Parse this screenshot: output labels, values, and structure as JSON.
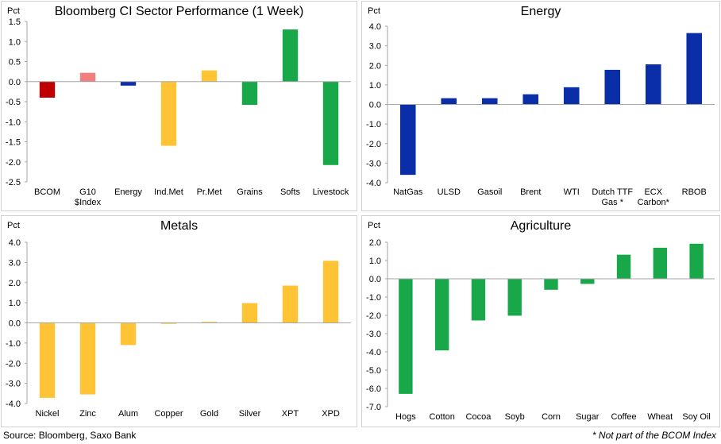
{
  "colors": {
    "red": "#c00000",
    "pink": "#f08080",
    "blue": "#0a2ea8",
    "yellow": "#ffc336",
    "green": "#18a84a",
    "axis": "#a6a6a6"
  },
  "unit_label": "Pct",
  "footer": {
    "source": "Source: Bloomberg, Saxo Bank",
    "note": "* Not part of the BCOM Index"
  },
  "chart_data": [
    {
      "id": "sector",
      "type": "bar",
      "title": "Bloomberg CI Sector Performance (1 Week)",
      "ylabel": "Pct",
      "ylim": [
        -2.5,
        1.5
      ],
      "yticks": [
        -2.5,
        -2.0,
        -1.5,
        -1.0,
        -0.5,
        0.0,
        0.5,
        1.0,
        1.5
      ],
      "tick_decimals": 1,
      "categories": [
        [
          "BCOM"
        ],
        [
          "G10",
          "$Index"
        ],
        [
          "Energy"
        ],
        [
          "Ind.Met"
        ],
        [
          "Pr.Met"
        ],
        [
          "Grains"
        ],
        [
          "Softs"
        ],
        [
          "Livestock"
        ]
      ],
      "values": [
        -0.4,
        0.22,
        -0.1,
        -1.6,
        0.28,
        -0.58,
        1.3,
        -2.08
      ],
      "bar_colors": [
        "red",
        "pink",
        "blue",
        "yellow",
        "yellow",
        "green",
        "green",
        "green"
      ]
    },
    {
      "id": "energy",
      "type": "bar",
      "title": "Energy",
      "ylabel": "Pct",
      "ylim": [
        -4.0,
        4.0
      ],
      "yticks": [
        -4.0,
        -3.0,
        -2.0,
        -1.0,
        0.0,
        1.0,
        2.0,
        3.0,
        4.0
      ],
      "tick_decimals": 1,
      "categories": [
        [
          "NatGas"
        ],
        [
          "ULSD"
        ],
        [
          "Gasoil"
        ],
        [
          "Brent"
        ],
        [
          "WTI"
        ],
        [
          "Dutch TTF",
          "Gas *"
        ],
        [
          "ECX",
          "Carbon*"
        ],
        [
          "RBOB"
        ]
      ],
      "values": [
        -3.6,
        0.32,
        0.32,
        0.52,
        0.88,
        1.77,
        2.05,
        3.65
      ],
      "bar_colors": [
        "blue",
        "blue",
        "blue",
        "blue",
        "blue",
        "blue",
        "blue",
        "blue"
      ]
    },
    {
      "id": "metals",
      "type": "bar",
      "title": "Metals",
      "ylabel": "Pct",
      "ylim": [
        -4.0,
        4.0
      ],
      "yticks": [
        -4.0,
        -3.0,
        -2.0,
        -1.0,
        0.0,
        1.0,
        2.0,
        3.0,
        4.0
      ],
      "tick_decimals": 1,
      "categories": [
        [
          "Nickel"
        ],
        [
          "Zinc"
        ],
        [
          "Alum"
        ],
        [
          "Copper"
        ],
        [
          "Gold"
        ],
        [
          "Silver"
        ],
        [
          "XPT"
        ],
        [
          "XPD"
        ]
      ],
      "values": [
        -3.72,
        -3.55,
        -1.1,
        -0.05,
        0.05,
        0.98,
        1.85,
        3.08
      ],
      "bar_colors": [
        "yellow",
        "yellow",
        "yellow",
        "yellow",
        "yellow",
        "yellow",
        "yellow",
        "yellow"
      ]
    },
    {
      "id": "agriculture",
      "type": "bar",
      "title": "Agriculture",
      "ylabel": "Pct",
      "ylim": [
        -7.0,
        2.0
      ],
      "yticks": [
        -7.0,
        -6.0,
        -5.0,
        -4.0,
        -3.0,
        -2.0,
        -1.0,
        0.0,
        1.0,
        2.0
      ],
      "tick_decimals": 1,
      "categories": [
        [
          "Hogs"
        ],
        [
          "Cotton"
        ],
        [
          "Cocoa"
        ],
        [
          "Soyb"
        ],
        [
          "Corn"
        ],
        [
          "Sugar"
        ],
        [
          "Coffee"
        ],
        [
          "Wheat"
        ],
        [
          "Soy Oil"
        ]
      ],
      "values": [
        -6.3,
        -3.92,
        -2.28,
        -2.02,
        -0.6,
        -0.28,
        1.32,
        1.7,
        1.92
      ],
      "bar_colors": [
        "green",
        "green",
        "green",
        "green",
        "green",
        "green",
        "green",
        "green",
        "green"
      ]
    }
  ]
}
